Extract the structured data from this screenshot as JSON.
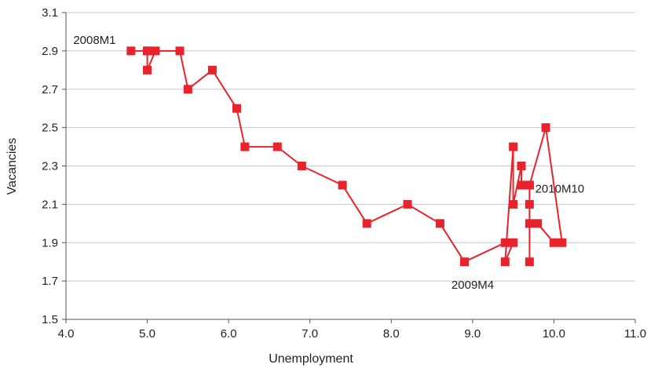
{
  "chart_data": {
    "type": "scatter",
    "title": "",
    "xlabel": "Unemployment",
    "ylabel": "Vacancies",
    "xlim": [
      4.0,
      11.0
    ],
    "ylim": [
      1.5,
      3.1
    ],
    "x_ticks": [
      "4.0",
      "5.0",
      "6.0",
      "7.0",
      "8.0",
      "9.0",
      "10.0",
      "11.0"
    ],
    "y_ticks": [
      "1.5",
      "1.7",
      "1.9",
      "2.1",
      "2.3",
      "2.5",
      "2.7",
      "2.9",
      "3.1"
    ],
    "grid": "horizontal",
    "connected": true,
    "series_color": "#e8232b",
    "points": [
      {
        "x": 4.8,
        "y": 2.9
      },
      {
        "x": 5.0,
        "y": 2.9
      },
      {
        "x": 5.1,
        "y": 2.9
      },
      {
        "x": 5.0,
        "y": 2.8
      },
      {
        "x": 5.0,
        "y": 2.9
      },
      {
        "x": 5.4,
        "y": 2.9
      },
      {
        "x": 5.5,
        "y": 2.7
      },
      {
        "x": 5.8,
        "y": 2.8
      },
      {
        "x": 6.1,
        "y": 2.6
      },
      {
        "x": 6.2,
        "y": 2.4
      },
      {
        "x": 6.6,
        "y": 2.4
      },
      {
        "x": 6.9,
        "y": 2.3
      },
      {
        "x": 7.4,
        "y": 2.2
      },
      {
        "x": 7.7,
        "y": 2.0
      },
      {
        "x": 8.2,
        "y": 2.1
      },
      {
        "x": 8.6,
        "y": 2.0
      },
      {
        "x": 8.9,
        "y": 1.8
      },
      {
        "x": 9.4,
        "y": 1.9
      },
      {
        "x": 9.5,
        "y": 1.9
      },
      {
        "x": 9.4,
        "y": 1.8
      },
      {
        "x": 9.5,
        "y": 2.4
      },
      {
        "x": 9.5,
        "y": 2.1
      },
      {
        "x": 9.6,
        "y": 2.3
      },
      {
        "x": 9.6,
        "y": 2.2
      },
      {
        "x": 9.7,
        "y": 2.2
      },
      {
        "x": 9.7,
        "y": 2.1
      },
      {
        "x": 9.7,
        "y": 1.8
      },
      {
        "x": 9.7,
        "y": 2.0
      },
      {
        "x": 9.8,
        "y": 2.0
      },
      {
        "x": 10.0,
        "y": 1.9
      },
      {
        "x": 10.1,
        "y": 1.9
      },
      {
        "x": 9.9,
        "y": 2.5
      },
      {
        "x": 9.7,
        "y": 2.2
      }
    ],
    "annotations": [
      {
        "text": "2008M1",
        "x": 4.09,
        "y": 2.936
      },
      {
        "text": "2009M4",
        "x": 8.74,
        "y": 1.66
      },
      {
        "text": "2010M10",
        "x": 9.77,
        "y": 2.16
      }
    ]
  }
}
